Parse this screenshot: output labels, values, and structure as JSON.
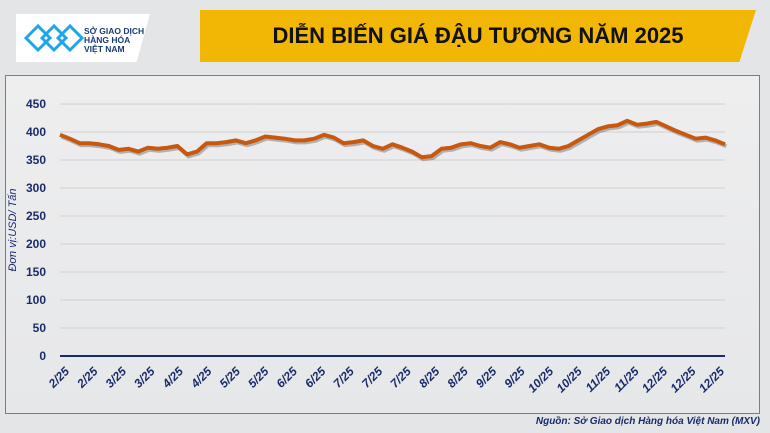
{
  "header": {
    "title": "DIỄN BIẾN GIÁ ĐẬU TƯƠNG NĂM 2025",
    "logo_text": [
      "SỞ GIAO DỊCH",
      "HÀNG HÓA",
      "VIỆT NAM"
    ]
  },
  "source": "Nguồn: Sở Giao dịch Hàng hóa Việt Nam (MXV)",
  "chart_data": {
    "type": "line",
    "title": "DIỄN BIẾN GIÁ ĐẬU TƯƠNG NĂM 2025",
    "ylabel": "Đơn vị:USD/ Tấn",
    "xlabel": "",
    "ylim": [
      0,
      450
    ],
    "yticks": [
      0,
      50,
      100,
      150,
      200,
      250,
      300,
      350,
      400,
      450
    ],
    "xtick_labels": [
      "2/25",
      "2/25",
      "3/25",
      "3/25",
      "4/25",
      "4/25",
      "5/25",
      "5/25",
      "6/25",
      "6/25",
      "7/25",
      "7/25",
      "7/25",
      "8/25",
      "8/25",
      "9/25",
      "9/25",
      "10/25",
      "10/25",
      "11/25",
      "11/25",
      "12/25",
      "12/25",
      "12/25"
    ],
    "grid": "horizontal",
    "color": "#c8580e",
    "values": [
      395,
      388,
      380,
      380,
      378,
      375,
      368,
      370,
      365,
      372,
      370,
      372,
      375,
      360,
      365,
      380,
      380,
      382,
      385,
      380,
      385,
      392,
      390,
      388,
      385,
      385,
      388,
      395,
      390,
      380,
      382,
      385,
      375,
      370,
      378,
      372,
      365,
      355,
      357,
      370,
      372,
      378,
      380,
      375,
      372,
      382,
      378,
      372,
      375,
      378,
      372,
      370,
      375,
      385,
      395,
      405,
      410,
      412,
      420,
      413,
      415,
      418,
      410,
      402,
      395,
      388,
      390,
      385,
      378
    ]
  }
}
